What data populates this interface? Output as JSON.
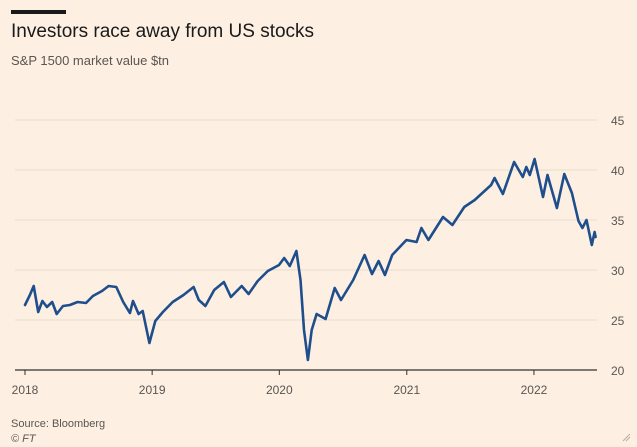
{
  "header": {
    "title": "Investors race away from US stocks",
    "subtitle": "S&P 1500 market value $tn"
  },
  "footer": {
    "source": "Source: Bloomberg",
    "credit": "© FT"
  },
  "colors": {
    "background": "#fdf0e3",
    "line": "#1f4e8c",
    "grid": "#e8dccf",
    "axis": "#33302e",
    "text": "#5a5550"
  },
  "chart_data": {
    "type": "line",
    "title": "Investors race away from US stocks",
    "subtitle": "S&P 1500 market value $tn",
    "xlabel": "",
    "ylabel": "",
    "y_axis_position": "right",
    "ylim": [
      20,
      47
    ],
    "y_ticks": [
      20,
      25,
      30,
      35,
      40,
      45
    ],
    "xlim": [
      "2018-01-01",
      "2022-07-01"
    ],
    "x_ticks": [
      "2018",
      "2019",
      "2020",
      "2021",
      "2022"
    ],
    "grid": "horizontal",
    "series": [
      {
        "values": [
          [
            "2018-01-01",
            26.5
          ],
          [
            "2018-01-15",
            27.5
          ],
          [
            "2018-01-26",
            28.4
          ],
          [
            "2018-02-08",
            25.8
          ],
          [
            "2018-02-20",
            26.9
          ],
          [
            "2018-03-05",
            26.3
          ],
          [
            "2018-03-20",
            26.8
          ],
          [
            "2018-04-02",
            25.6
          ],
          [
            "2018-04-20",
            26.4
          ],
          [
            "2018-05-10",
            26.5
          ],
          [
            "2018-06-01",
            26.8
          ],
          [
            "2018-06-25",
            26.7
          ],
          [
            "2018-07-15",
            27.4
          ],
          [
            "2018-08-10",
            27.9
          ],
          [
            "2018-08-29",
            28.4
          ],
          [
            "2018-09-20",
            28.3
          ],
          [
            "2018-10-10",
            26.8
          ],
          [
            "2018-10-29",
            25.7
          ],
          [
            "2018-11-07",
            26.9
          ],
          [
            "2018-11-23",
            25.6
          ],
          [
            "2018-12-05",
            25.9
          ],
          [
            "2018-12-24",
            22.7
          ],
          [
            "2019-01-10",
            24.9
          ],
          [
            "2019-02-01",
            25.8
          ],
          [
            "2019-03-01",
            26.8
          ],
          [
            "2019-04-01",
            27.5
          ],
          [
            "2019-04-30",
            28.3
          ],
          [
            "2019-05-15",
            27.0
          ],
          [
            "2019-06-03",
            26.4
          ],
          [
            "2019-06-28",
            28.0
          ],
          [
            "2019-07-26",
            28.8
          ],
          [
            "2019-08-15",
            27.3
          ],
          [
            "2019-09-15",
            28.4
          ],
          [
            "2019-10-05",
            27.6
          ],
          [
            "2019-10-31",
            28.9
          ],
          [
            "2019-11-29",
            29.9
          ],
          [
            "2019-12-31",
            30.5
          ],
          [
            "2020-01-15",
            31.2
          ],
          [
            "2020-01-31",
            30.4
          ],
          [
            "2020-02-19",
            31.9
          ],
          [
            "2020-03-02",
            29.0
          ],
          [
            "2020-03-12",
            24.0
          ],
          [
            "2020-03-23",
            21.0
          ],
          [
            "2020-04-03",
            24.0
          ],
          [
            "2020-04-17",
            25.6
          ],
          [
            "2020-05-13",
            25.1
          ],
          [
            "2020-06-08",
            28.2
          ],
          [
            "2020-06-26",
            27.0
          ],
          [
            "2020-07-31",
            29.0
          ],
          [
            "2020-09-02",
            31.5
          ],
          [
            "2020-09-23",
            29.6
          ],
          [
            "2020-10-12",
            30.9
          ],
          [
            "2020-10-30",
            29.5
          ],
          [
            "2020-11-20",
            31.5
          ],
          [
            "2020-12-31",
            33.0
          ],
          [
            "2021-01-29",
            32.8
          ],
          [
            "2021-02-12",
            34.2
          ],
          [
            "2021-03-04",
            33.0
          ],
          [
            "2021-04-15",
            35.3
          ],
          [
            "2021-05-12",
            34.5
          ],
          [
            "2021-06-15",
            36.3
          ],
          [
            "2021-07-15",
            37.0
          ],
          [
            "2021-08-31",
            38.5
          ],
          [
            "2021-09-10",
            39.2
          ],
          [
            "2021-10-04",
            37.6
          ],
          [
            "2021-11-05",
            40.8
          ],
          [
            "2021-11-30",
            39.3
          ],
          [
            "2021-12-10",
            40.3
          ],
          [
            "2021-12-20",
            39.5
          ],
          [
            "2022-01-03",
            41.1
          ],
          [
            "2022-01-27",
            37.3
          ],
          [
            "2022-02-09",
            39.5
          ],
          [
            "2022-03-08",
            36.2
          ],
          [
            "2022-03-29",
            39.6
          ],
          [
            "2022-04-20",
            37.7
          ],
          [
            "2022-05-09",
            34.9
          ],
          [
            "2022-05-20",
            34.2
          ],
          [
            "2022-06-01",
            35.0
          ],
          [
            "2022-06-16",
            32.5
          ],
          [
            "2022-06-24",
            33.8
          ],
          [
            "2022-06-27",
            33.3
          ]
        ]
      }
    ]
  }
}
